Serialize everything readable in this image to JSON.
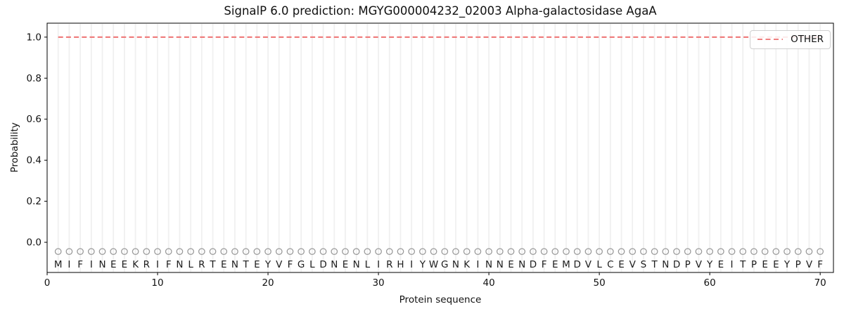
{
  "chart_data": {
    "type": "line",
    "title": "SignalP 6.0 prediction: MGYG000004232_02003 Alpha-galactosidase AgaA",
    "xlabel": "Protein sequence",
    "ylabel": "Probability",
    "xlim": [
      0,
      71.2
    ],
    "ylim": [
      -0.147,
      1.068
    ],
    "xtick_values": [
      0,
      10,
      20,
      30,
      40,
      50,
      60,
      70
    ],
    "xtick_labels": [
      "0",
      "10",
      "20",
      "30",
      "40",
      "50",
      "60",
      "70"
    ],
    "ytick_values": [
      0.0,
      0.2,
      0.4,
      0.6,
      0.8,
      1.0
    ],
    "ytick_labels": [
      "0.0",
      "0.2",
      "0.4",
      "0.6",
      "0.8",
      "1.0"
    ],
    "grid": {
      "vertical_per_residue": true,
      "horizontal": false,
      "color": "#f0f0f0"
    },
    "legend": {
      "position": "upper-right",
      "entries": [
        {
          "label": "OTHER",
          "color": "#ef7f7f",
          "linestyle": "dashed"
        }
      ]
    },
    "sequence": "MIFINEEKRIFNLRTENTEYVFGLDNENLIRHIYWGNKINNENDFEMDVLCEVSTNDPVYEITPEEYPVF",
    "sequence_positions": {
      "start": 1,
      "end": 70
    },
    "series": [
      {
        "name": "OTHER",
        "linestyle": "dashed",
        "color": "#ef7f7f",
        "x_start": 1,
        "x_end": 70,
        "y_constant": 1.0
      }
    ],
    "residue_markers": {
      "shape": "open-circle",
      "color": "#9a9a9a",
      "y": -0.045
    },
    "colors": {
      "spine": "#000000",
      "text": "#111111",
      "letters": "#1c1c1c"
    }
  }
}
